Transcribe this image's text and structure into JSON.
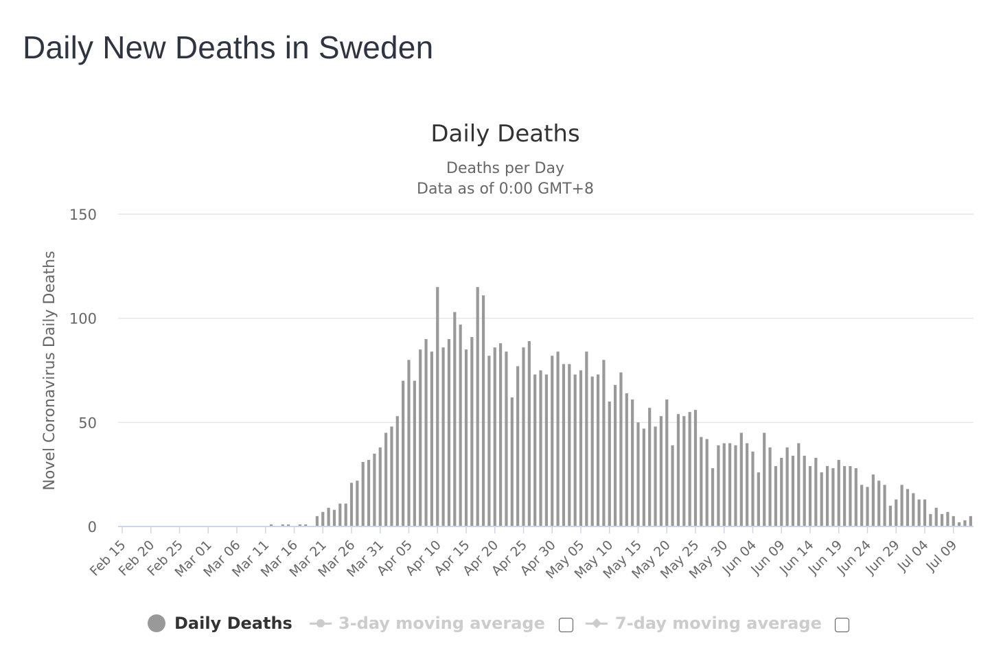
{
  "page": {
    "title": "Daily New Deaths in Sweden"
  },
  "chart_data": {
    "type": "bar",
    "title": "Daily Deaths",
    "subtitle_lines": [
      "Deaths per Day",
      "Data as of 0:00 GMT+8"
    ],
    "ylabel": "Novel Coronavirus Daily Deaths",
    "ylim": [
      0,
      150
    ],
    "yticks": [
      0,
      50,
      100,
      150
    ],
    "grid": true,
    "start_date": "Feb 15",
    "xtick_labels": [
      "Feb 15",
      "Feb 20",
      "Feb 25",
      "Mar 01",
      "Mar 06",
      "Mar 11",
      "Mar 16",
      "Mar 21",
      "Mar 26",
      "Mar 31",
      "Apr 05",
      "Apr 10",
      "Apr 15",
      "Apr 20",
      "Apr 25",
      "Apr 30",
      "May 05",
      "May 10",
      "May 15",
      "May 20",
      "May 25",
      "May 30",
      "Jun 04",
      "Jun 09",
      "Jun 14",
      "Jun 19",
      "Jun 24",
      "Jun 29",
      "Jul 04",
      "Jul 09"
    ],
    "series": [
      {
        "name": "Daily Deaths",
        "color": "#999999",
        "values": [
          0,
          0,
          0,
          0,
          0,
          0,
          0,
          0,
          0,
          0,
          0,
          0,
          0,
          0,
          0,
          0,
          0,
          0,
          0,
          0,
          0,
          0,
          0,
          0,
          0,
          0,
          1,
          0,
          1,
          1,
          0,
          1,
          1,
          0,
          5,
          7,
          9,
          8,
          11,
          11,
          21,
          22,
          31,
          32,
          35,
          38,
          45,
          48,
          53,
          70,
          80,
          70,
          85,
          90,
          84,
          115,
          86,
          90,
          103,
          97,
          85,
          91,
          115,
          111,
          82,
          86,
          88,
          84,
          62,
          77,
          86,
          89,
          73,
          75,
          73,
          82,
          84,
          78,
          78,
          73,
          75,
          84,
          72,
          73,
          80,
          60,
          68,
          74,
          64,
          61,
          50,
          47,
          57,
          48,
          53,
          61,
          39,
          54,
          53,
          55,
          56,
          43,
          42,
          28,
          39,
          40,
          40,
          39,
          45,
          40,
          36,
          26,
          45,
          38,
          29,
          33,
          38,
          34,
          40,
          34,
          29,
          33,
          26,
          29,
          28,
          32,
          29,
          29,
          28,
          20,
          19,
          25,
          22,
          20,
          10,
          13,
          20,
          18,
          16,
          13,
          13,
          6,
          9,
          6,
          7,
          5,
          2,
          3,
          5,
          0,
          0,
          0,
          0,
          1
        ]
      },
      {
        "name": "3-day moving average",
        "visible": false
      },
      {
        "name": "7-day moving average",
        "visible": false
      }
    ],
    "colors": {
      "bar": "#999999",
      "grid": "#e6e6e6",
      "axis_line": "#ccd6eb",
      "text": "#333333",
      "axis_text": "#666666"
    }
  },
  "legend": {
    "items": [
      {
        "label": "Daily Deaths",
        "active": true,
        "marker": "circle"
      },
      {
        "label": "3-day moving average",
        "active": false,
        "marker": "line-circle"
      },
      {
        "label": "7-day moving average",
        "active": false,
        "marker": "line-diamond"
      }
    ]
  }
}
